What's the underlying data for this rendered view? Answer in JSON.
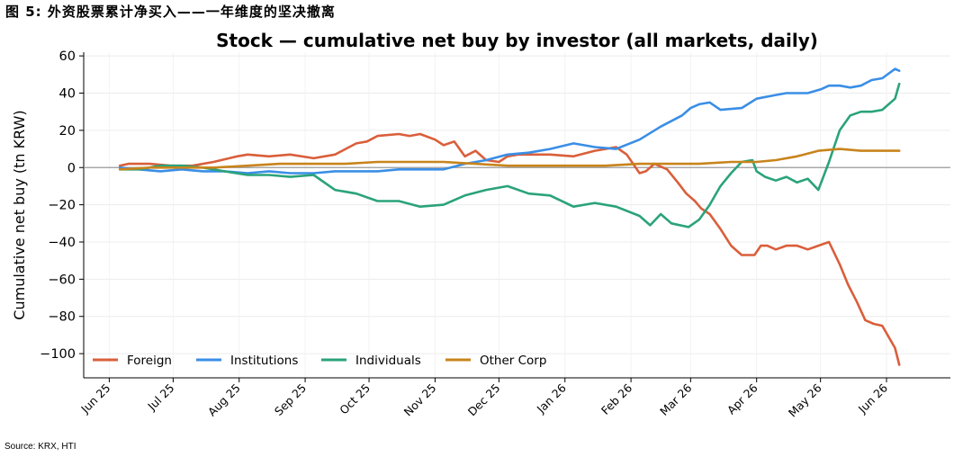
{
  "figure": {
    "caption": "图 5:  外资股票累计净买入——一年维度的坚决撤离",
    "source": "Source: KRX, HTI"
  },
  "chart_data": {
    "type": "line",
    "title": "Stock — cumulative net buy by investor (all markets, daily)",
    "xlabel": "",
    "ylabel": "Cumulative net buy (tn KRW)",
    "ylim": [
      -113,
      62
    ],
    "yticks": [
      60,
      40,
      20,
      0,
      -20,
      -40,
      -60,
      -80,
      -100
    ],
    "ytick_labels": [
      "60",
      "40",
      "20",
      "0",
      "−20",
      "−40",
      "−60",
      "−80",
      "−100"
    ],
    "xlim": [
      "2025-05-20",
      "2026-07-01"
    ],
    "xticks": [
      "2025-06-01",
      "2025-07-01",
      "2025-08-01",
      "2025-09-01",
      "2025-10-01",
      "2025-11-01",
      "2025-12-01",
      "2026-01-01",
      "2026-02-01",
      "2026-03-01",
      "2026-04-01",
      "2026-05-01",
      "2026-06-01"
    ],
    "xtick_labels": [
      "Jun 25",
      "Jul 25",
      "Aug 25",
      "Sep 25",
      "Oct 25",
      "Nov 25",
      "Dec 25",
      "Jan 26",
      "Feb 26",
      "Mar 26",
      "Apr 26",
      "May 26",
      "Jun 26"
    ],
    "grid": true,
    "zero_line": true,
    "legend": "bottom-left",
    "series": [
      {
        "name": "Foreign",
        "color": "#d95f3b",
        "x": [
          "2025-06-06",
          "2025-06-10",
          "2025-06-20",
          "2025-06-30",
          "2025-07-10",
          "2025-07-20",
          "2025-07-31",
          "2025-08-05",
          "2025-08-15",
          "2025-08-25",
          "2025-09-05",
          "2025-09-15",
          "2025-09-25",
          "2025-09-30",
          "2025-10-05",
          "2025-10-15",
          "2025-10-20",
          "2025-10-25",
          "2025-11-01",
          "2025-11-05",
          "2025-11-10",
          "2025-11-15",
          "2025-11-20",
          "2025-11-25",
          "2025-12-01",
          "2025-12-05",
          "2025-12-10",
          "2025-12-15",
          "2025-12-25",
          "2026-01-05",
          "2026-01-15",
          "2026-01-20",
          "2026-01-25",
          "2026-01-30",
          "2026-02-05",
          "2026-02-08",
          "2026-02-12",
          "2026-02-18",
          "2026-02-23",
          "2026-02-27",
          "2026-03-03",
          "2026-03-06",
          "2026-03-10",
          "2026-03-15",
          "2026-03-20",
          "2026-03-25",
          "2026-03-31",
          "2026-04-03",
          "2026-04-06",
          "2026-04-10",
          "2026-04-15",
          "2026-04-20",
          "2026-04-25",
          "2026-04-30",
          "2026-05-05",
          "2026-05-10",
          "2026-05-14",
          "2026-05-18",
          "2026-05-22",
          "2026-05-26",
          "2026-05-30",
          "2026-06-05",
          "2026-06-07"
        ],
        "y": [
          1,
          2,
          2,
          1,
          1,
          3,
          6,
          7,
          6,
          7,
          5,
          7,
          13,
          14,
          17,
          18,
          17,
          18,
          15,
          12,
          14,
          6,
          9,
          4,
          3,
          6,
          7,
          7,
          7,
          6,
          9,
          10,
          11,
          7,
          -3,
          -2,
          2,
          -1,
          -8,
          -14,
          -18,
          -22,
          -25,
          -33,
          -42,
          -47,
          -47,
          -42,
          -42,
          -44,
          -42,
          -42,
          -44,
          -42,
          -40,
          -52,
          -63,
          -72,
          -82,
          -84,
          -85,
          -97,
          -106
        ]
      },
      {
        "name": "Institutions",
        "color": "#3a8ee6",
        "x": [
          "2025-06-06",
          "2025-06-15",
          "2025-06-25",
          "2025-07-05",
          "2025-07-15",
          "2025-07-25",
          "2025-08-05",
          "2025-08-15",
          "2025-08-25",
          "2025-09-05",
          "2025-09-15",
          "2025-09-25",
          "2025-10-05",
          "2025-10-15",
          "2025-10-25",
          "2025-11-05",
          "2025-11-15",
          "2025-11-25",
          "2025-12-05",
          "2025-12-15",
          "2025-12-25",
          "2026-01-05",
          "2026-01-10",
          "2026-01-15",
          "2026-01-25",
          "2026-02-05",
          "2026-02-15",
          "2026-02-25",
          "2026-03-01",
          "2026-03-05",
          "2026-03-10",
          "2026-03-15",
          "2026-03-25",
          "2026-04-01",
          "2026-04-10",
          "2026-04-15",
          "2026-04-25",
          "2026-05-01",
          "2026-05-05",
          "2026-05-10",
          "2026-05-15",
          "2026-05-20",
          "2026-05-25",
          "2026-05-30",
          "2026-06-05",
          "2026-06-07"
        ],
        "y": [
          0,
          -1,
          -2,
          -1,
          -2,
          -2,
          -3,
          -2,
          -3,
          -3,
          -2,
          -2,
          -2,
          -1,
          -1,
          -1,
          2,
          4,
          7,
          8,
          10,
          13,
          12,
          11,
          10,
          15,
          22,
          28,
          32,
          34,
          35,
          31,
          32,
          37,
          39,
          40,
          40,
          42,
          44,
          44,
          43,
          44,
          47,
          48,
          53,
          52
        ]
      },
      {
        "name": "Individuals",
        "color": "#2aa37a",
        "x": [
          "2025-06-06",
          "2025-06-15",
          "2025-06-25",
          "2025-07-05",
          "2025-07-15",
          "2025-07-25",
          "2025-08-05",
          "2025-08-15",
          "2025-08-25",
          "2025-09-05",
          "2025-09-15",
          "2025-09-25",
          "2025-10-05",
          "2025-10-15",
          "2025-10-25",
          "2025-11-05",
          "2025-11-15",
          "2025-11-25",
          "2025-12-05",
          "2025-12-15",
          "2025-12-25",
          "2026-01-05",
          "2026-01-15",
          "2026-01-25",
          "2026-02-05",
          "2026-02-10",
          "2026-02-15",
          "2026-02-20",
          "2026-02-28",
          "2026-03-05",
          "2026-03-10",
          "2026-03-15",
          "2026-03-20",
          "2026-03-25",
          "2026-03-30",
          "2026-04-01",
          "2026-04-05",
          "2026-04-10",
          "2026-04-15",
          "2026-04-20",
          "2026-04-25",
          "2026-04-30",
          "2026-05-05",
          "2026-05-10",
          "2026-05-15",
          "2026-05-20",
          "2026-05-25",
          "2026-05-30",
          "2026-06-05",
          "2026-06-07"
        ],
        "y": [
          -1,
          -1,
          1,
          1,
          0,
          -2,
          -4,
          -4,
          -5,
          -4,
          -12,
          -14,
          -18,
          -18,
          -21,
          -20,
          -15,
          -12,
          -10,
          -14,
          -15,
          -21,
          -19,
          -21,
          -26,
          -31,
          -25,
          -30,
          -32,
          -28,
          -20,
          -10,
          -3,
          3,
          4,
          -2,
          -5,
          -7,
          -5,
          -8,
          -6,
          -12,
          3,
          20,
          28,
          30,
          30,
          31,
          37,
          45
        ]
      },
      {
        "name": "Other Corp",
        "color": "#c8841c",
        "x": [
          "2025-06-06",
          "2025-06-20",
          "2025-07-05",
          "2025-07-20",
          "2025-08-05",
          "2025-08-20",
          "2025-09-05",
          "2025-09-20",
          "2025-10-05",
          "2025-10-20",
          "2025-11-05",
          "2025-11-20",
          "2025-12-05",
          "2025-12-20",
          "2026-01-05",
          "2026-01-20",
          "2026-02-05",
          "2026-02-20",
          "2026-03-05",
          "2026-03-20",
          "2026-04-01",
          "2026-04-10",
          "2026-04-20",
          "2026-04-30",
          "2026-05-10",
          "2026-05-20",
          "2026-06-01",
          "2026-06-07"
        ],
        "y": [
          -1,
          0,
          0,
          0,
          1,
          2,
          2,
          2,
          3,
          3,
          3,
          2,
          1,
          1,
          1,
          1,
          2,
          2,
          2,
          3,
          3,
          4,
          6,
          9,
          10,
          9,
          9,
          9
        ]
      }
    ]
  }
}
